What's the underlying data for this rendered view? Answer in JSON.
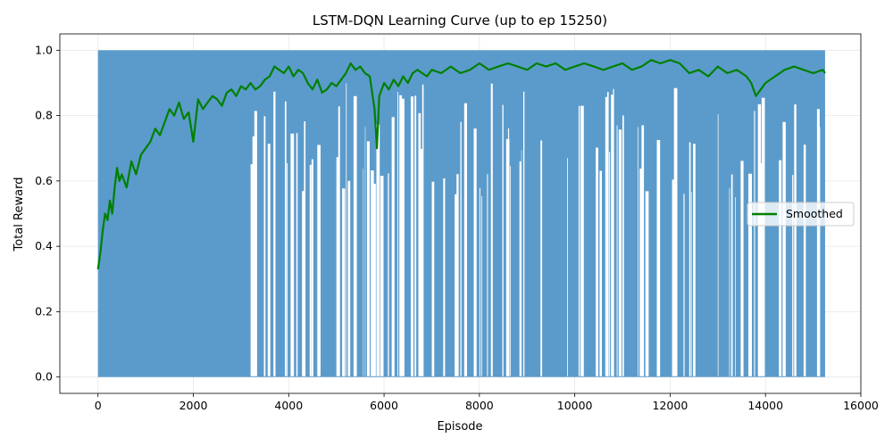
{
  "chart_data": {
    "type": "line",
    "title": "LSTM-DQN Learning Curve (up to ep 15250)",
    "xlabel": "Episode",
    "ylabel": "Total Reward",
    "xlim": [
      -800,
      16000
    ],
    "ylim": [
      -0.05,
      1.05
    ],
    "xticks": [
      0,
      2000,
      4000,
      6000,
      8000,
      10000,
      12000,
      14000,
      16000
    ],
    "yticks": [
      0.0,
      0.2,
      0.4,
      0.6,
      0.8,
      1.0
    ],
    "xtick_labels": [
      "0",
      "2000",
      "4000",
      "6000",
      "8000",
      "10000",
      "12000",
      "14000",
      "16000"
    ],
    "ytick_labels": [
      "0.0",
      "0.2",
      "0.4",
      "0.6",
      "0.8",
      "1.0"
    ],
    "grid": true,
    "legend_position": "center-right",
    "raw_series": {
      "color": "#5b9bcb",
      "episodes": 15250,
      "min": 0.0,
      "max": 1.0,
      "description": "per-episode reward oscillating between ~0 and ~1"
    },
    "series": [
      {
        "name": "Smoothed",
        "color": "#008000",
        "x": [
          0,
          50,
          100,
          150,
          200,
          250,
          300,
          350,
          400,
          450,
          500,
          600,
          700,
          800,
          900,
          1000,
          1100,
          1200,
          1300,
          1400,
          1500,
          1600,
          1700,
          1800,
          1900,
          2000,
          2100,
          2200,
          2300,
          2400,
          2500,
          2600,
          2700,
          2800,
          2900,
          3000,
          3100,
          3200,
          3300,
          3400,
          3500,
          3600,
          3700,
          3800,
          3900,
          4000,
          4100,
          4200,
          4300,
          4400,
          4500,
          4600,
          4700,
          4800,
          4900,
          5000,
          5100,
          5200,
          5300,
          5400,
          5500,
          5600,
          5700,
          5800,
          5850,
          5900,
          6000,
          6100,
          6200,
          6300,
          6400,
          6500,
          6600,
          6700,
          6800,
          6900,
          7000,
          7200,
          7400,
          7600,
          7800,
          8000,
          8200,
          8400,
          8600,
          8800,
          9000,
          9200,
          9400,
          9600,
          9800,
          10000,
          10200,
          10400,
          10600,
          10800,
          11000,
          11200,
          11400,
          11600,
          11800,
          12000,
          12200,
          12400,
          12600,
          12800,
          13000,
          13200,
          13400,
          13600,
          13700,
          13800,
          13900,
          14000,
          14200,
          14400,
          14600,
          14800,
          15000,
          15200,
          15250
        ],
        "y": [
          0.33,
          0.38,
          0.45,
          0.5,
          0.48,
          0.54,
          0.5,
          0.58,
          0.64,
          0.6,
          0.62,
          0.58,
          0.66,
          0.62,
          0.68,
          0.7,
          0.72,
          0.76,
          0.74,
          0.78,
          0.82,
          0.8,
          0.84,
          0.79,
          0.81,
          0.72,
          0.85,
          0.82,
          0.84,
          0.86,
          0.85,
          0.83,
          0.87,
          0.88,
          0.86,
          0.89,
          0.88,
          0.9,
          0.88,
          0.89,
          0.91,
          0.92,
          0.95,
          0.94,
          0.93,
          0.95,
          0.92,
          0.94,
          0.93,
          0.9,
          0.88,
          0.91,
          0.87,
          0.88,
          0.9,
          0.89,
          0.91,
          0.93,
          0.96,
          0.94,
          0.95,
          0.93,
          0.92,
          0.82,
          0.7,
          0.86,
          0.9,
          0.88,
          0.91,
          0.89,
          0.92,
          0.9,
          0.93,
          0.94,
          0.93,
          0.92,
          0.94,
          0.93,
          0.95,
          0.93,
          0.94,
          0.96,
          0.94,
          0.95,
          0.96,
          0.95,
          0.94,
          0.96,
          0.95,
          0.96,
          0.94,
          0.95,
          0.96,
          0.95,
          0.94,
          0.95,
          0.96,
          0.94,
          0.95,
          0.97,
          0.96,
          0.97,
          0.96,
          0.93,
          0.94,
          0.92,
          0.95,
          0.93,
          0.94,
          0.92,
          0.9,
          0.86,
          0.88,
          0.9,
          0.92,
          0.94,
          0.95,
          0.94,
          0.93,
          0.94,
          0.93
        ]
      }
    ]
  }
}
